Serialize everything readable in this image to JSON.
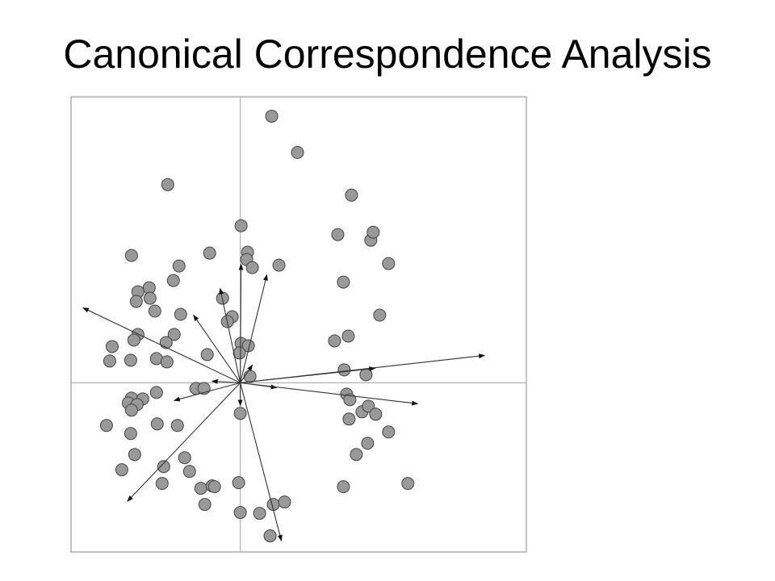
{
  "slide": {
    "title": "Canonical Correspondence Analysis"
  },
  "chart_data": {
    "type": "scatter",
    "title": "Canonical Correspondence Analysis",
    "xlabel": "",
    "ylabel": "",
    "xlim": [
      -2.1,
      3.55
    ],
    "ylim": [
      -2.1,
      3.55
    ],
    "grid": false,
    "axes_lines_at_zero": true,
    "tick_labels": false,
    "colors": {
      "point_fill": "#999999",
      "point_stroke": "#444444",
      "arrow": "#333333",
      "frame": "#9a9a9a",
      "zero_lines": "#b0b0b0"
    },
    "points": [
      {
        "x": 0.39,
        "y": 3.31
      },
      {
        "x": 0.71,
        "y": 2.86
      },
      {
        "x": -0.9,
        "y": 2.46
      },
      {
        "x": 1.38,
        "y": 2.33
      },
      {
        "x": 0.01,
        "y": 1.95
      },
      {
        "x": 1.21,
        "y": 1.84
      },
      {
        "x": 1.62,
        "y": 1.77
      },
      {
        "x": 1.65,
        "y": 1.87
      },
      {
        "x": -1.35,
        "y": 1.58
      },
      {
        "x": -0.38,
        "y": 1.61
      },
      {
        "x": 0.09,
        "y": 1.62
      },
      {
        "x": 0.08,
        "y": 1.53
      },
      {
        "x": 0.15,
        "y": 1.43
      },
      {
        "x": 0.48,
        "y": 1.46
      },
      {
        "x": 1.84,
        "y": 1.48
      },
      {
        "x": -0.76,
        "y": 1.45
      },
      {
        "x": -0.83,
        "y": 1.27
      },
      {
        "x": -1.13,
        "y": 1.18
      },
      {
        "x": -1.27,
        "y": 1.13
      },
      {
        "x": -1.12,
        "y": 1.05
      },
      {
        "x": -1.29,
        "y": 1.01
      },
      {
        "x": 1.28,
        "y": 1.25
      },
      {
        "x": -0.22,
        "y": 1.05
      },
      {
        "x": -1.06,
        "y": 0.89
      },
      {
        "x": -0.74,
        "y": 0.85
      },
      {
        "x": -0.1,
        "y": 0.82
      },
      {
        "x": -0.16,
        "y": 0.76
      },
      {
        "x": 1.73,
        "y": 0.84
      },
      {
        "x": -1.27,
        "y": 0.6
      },
      {
        "x": -0.82,
        "y": 0.6
      },
      {
        "x": -1.32,
        "y": 0.53
      },
      {
        "x": -0.92,
        "y": 0.5
      },
      {
        "x": 1.34,
        "y": 0.58
      },
      {
        "x": 1.17,
        "y": 0.52
      },
      {
        "x": 0.01,
        "y": 0.49
      },
      {
        "x": 0.1,
        "y": 0.46
      },
      {
        "x": -1.59,
        "y": 0.45
      },
      {
        "x": -0.41,
        "y": 0.35
      },
      {
        "x": -0.01,
        "y": 0.37
      },
      {
        "x": -1.62,
        "y": 0.27
      },
      {
        "x": -1.36,
        "y": 0.28
      },
      {
        "x": -1.04,
        "y": 0.3
      },
      {
        "x": -0.91,
        "y": 0.26
      },
      {
        "x": 1.29,
        "y": 0.16
      },
      {
        "x": 1.56,
        "y": 0.1
      },
      {
        "x": 0.12,
        "y": 0.08
      },
      {
        "x": -0.55,
        "y": -0.07
      },
      {
        "x": -0.45,
        "y": -0.07
      },
      {
        "x": -1.04,
        "y": -0.12
      },
      {
        "x": -1.35,
        "y": -0.19
      },
      {
        "x": -1.21,
        "y": -0.2
      },
      {
        "x": -1.39,
        "y": -0.25
      },
      {
        "x": -1.28,
        "y": -0.27
      },
      {
        "x": -1.35,
        "y": -0.34
      },
      {
        "x": 1.32,
        "y": -0.14
      },
      {
        "x": 1.36,
        "y": -0.21
      },
      {
        "x": 1.51,
        "y": -0.36
      },
      {
        "x": 1.59,
        "y": -0.29
      },
      {
        "x": 1.68,
        "y": -0.39
      },
      {
        "x": 1.35,
        "y": -0.45
      },
      {
        "x": 0.0,
        "y": -0.38
      },
      {
        "x": -1.66,
        "y": -0.53
      },
      {
        "x": -1.03,
        "y": -0.51
      },
      {
        "x": -0.78,
        "y": -0.53
      },
      {
        "x": -1.36,
        "y": -0.63
      },
      {
        "x": 1.84,
        "y": -0.61
      },
      {
        "x": 1.58,
        "y": -0.75
      },
      {
        "x": -1.31,
        "y": -0.89
      },
      {
        "x": 1.44,
        "y": -0.89
      },
      {
        "x": -0.69,
        "y": -0.93
      },
      {
        "x": -0.95,
        "y": -1.04
      },
      {
        "x": -1.47,
        "y": -1.08
      },
      {
        "x": -0.63,
        "y": -1.1
      },
      {
        "x": -0.97,
        "y": -1.25
      },
      {
        "x": -0.49,
        "y": -1.31
      },
      {
        "x": -0.35,
        "y": -1.28
      },
      {
        "x": -0.32,
        "y": -1.29
      },
      {
        "x": -0.02,
        "y": -1.24
      },
      {
        "x": 1.28,
        "y": -1.29
      },
      {
        "x": 2.08,
        "y": -1.25
      },
      {
        "x": -0.44,
        "y": -1.51
      },
      {
        "x": 0.41,
        "y": -1.51
      },
      {
        "x": 0.55,
        "y": -1.48
      },
      {
        "x": 0.0,
        "y": -1.61
      },
      {
        "x": 0.24,
        "y": -1.62
      },
      {
        "x": 0.37,
        "y": -1.9
      }
    ],
    "arrows": [
      {
        "x": -1.95,
        "y": 0.93
      },
      {
        "x": -0.58,
        "y": 0.84
      },
      {
        "x": -0.25,
        "y": 1.17
      },
      {
        "x": 0.01,
        "y": 1.47
      },
      {
        "x": 0.33,
        "y": 1.34
      },
      {
        "x": 0.15,
        "y": 0.22
      },
      {
        "x": 0.45,
        "y": -0.06
      },
      {
        "x": -0.35,
        "y": 0.02
      },
      {
        "x": -0.82,
        "y": -0.22
      },
      {
        "x": 3.03,
        "y": 0.34
      },
      {
        "x": 1.67,
        "y": 0.18
      },
      {
        "x": 2.2,
        "y": -0.26
      },
      {
        "x": 0.0,
        "y": -0.28
      },
      {
        "x": -1.4,
        "y": -1.47
      },
      {
        "x": 0.51,
        "y": -1.96
      }
    ]
  }
}
